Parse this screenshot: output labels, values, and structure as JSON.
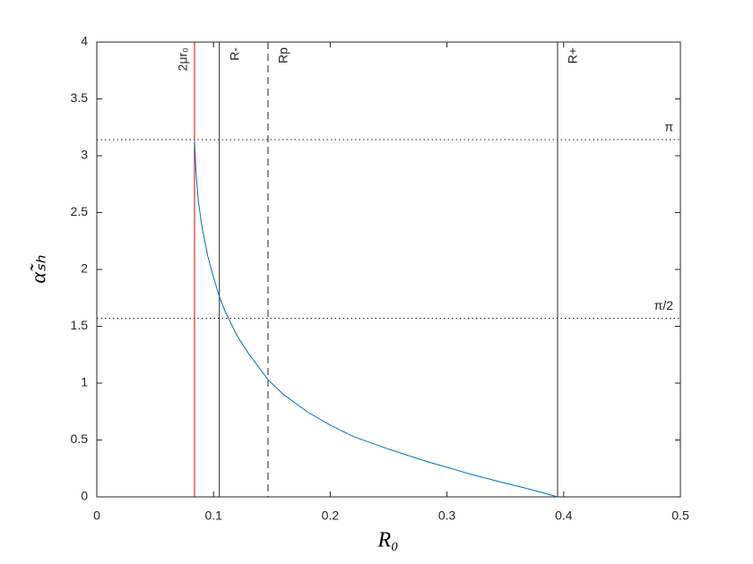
{
  "chart_data": {
    "type": "line",
    "xlabel": "R₀",
    "ylabel": "α̃ₛₕ",
    "xlim": [
      0,
      0.5
    ],
    "ylim": [
      0,
      4
    ],
    "xticks": [
      0,
      0.1,
      0.2,
      0.3,
      0.4,
      0.5
    ],
    "yticks": [
      0,
      0.5,
      1,
      1.5,
      2,
      2.5,
      3,
      3.5,
      4
    ],
    "x": [
      0.0837,
      0.085,
      0.087,
      0.09,
      0.095,
      0.1,
      0.105,
      0.11,
      0.12,
      0.13,
      0.1467,
      0.16,
      0.18,
      0.2,
      0.22,
      0.25,
      0.28,
      0.3,
      0.32,
      0.35,
      0.37,
      0.3948
    ],
    "series": [
      {
        "color": "#0072bd",
        "values": [
          3.14,
          2.85,
          2.6,
          2.38,
          2.12,
          1.93,
          1.76,
          1.63,
          1.42,
          1.26,
          1.03,
          0.9,
          0.75,
          0.63,
          0.53,
          0.42,
          0.32,
          0.26,
          0.2,
          0.12,
          0.07,
          0
        ]
      }
    ],
    "vlines": [
      {
        "x": 0.0837,
        "label": "2μr₀",
        "color": "#e00000",
        "style": "solid"
      },
      {
        "x": 0.105,
        "label": "R-",
        "color": "#262626",
        "style": "solid"
      },
      {
        "x": 0.1467,
        "label": "Rp",
        "color": "#262626",
        "style": "dashed"
      },
      {
        "x": 0.3948,
        "label": "R+",
        "color": "#262626",
        "style": "solid"
      }
    ],
    "hlines": [
      {
        "y": 3.1416,
        "label": "π",
        "color": "#262626",
        "style": "dotted"
      },
      {
        "y": 1.5708,
        "label": "π/2",
        "color": "#262626",
        "style": "dotted"
      }
    ]
  }
}
